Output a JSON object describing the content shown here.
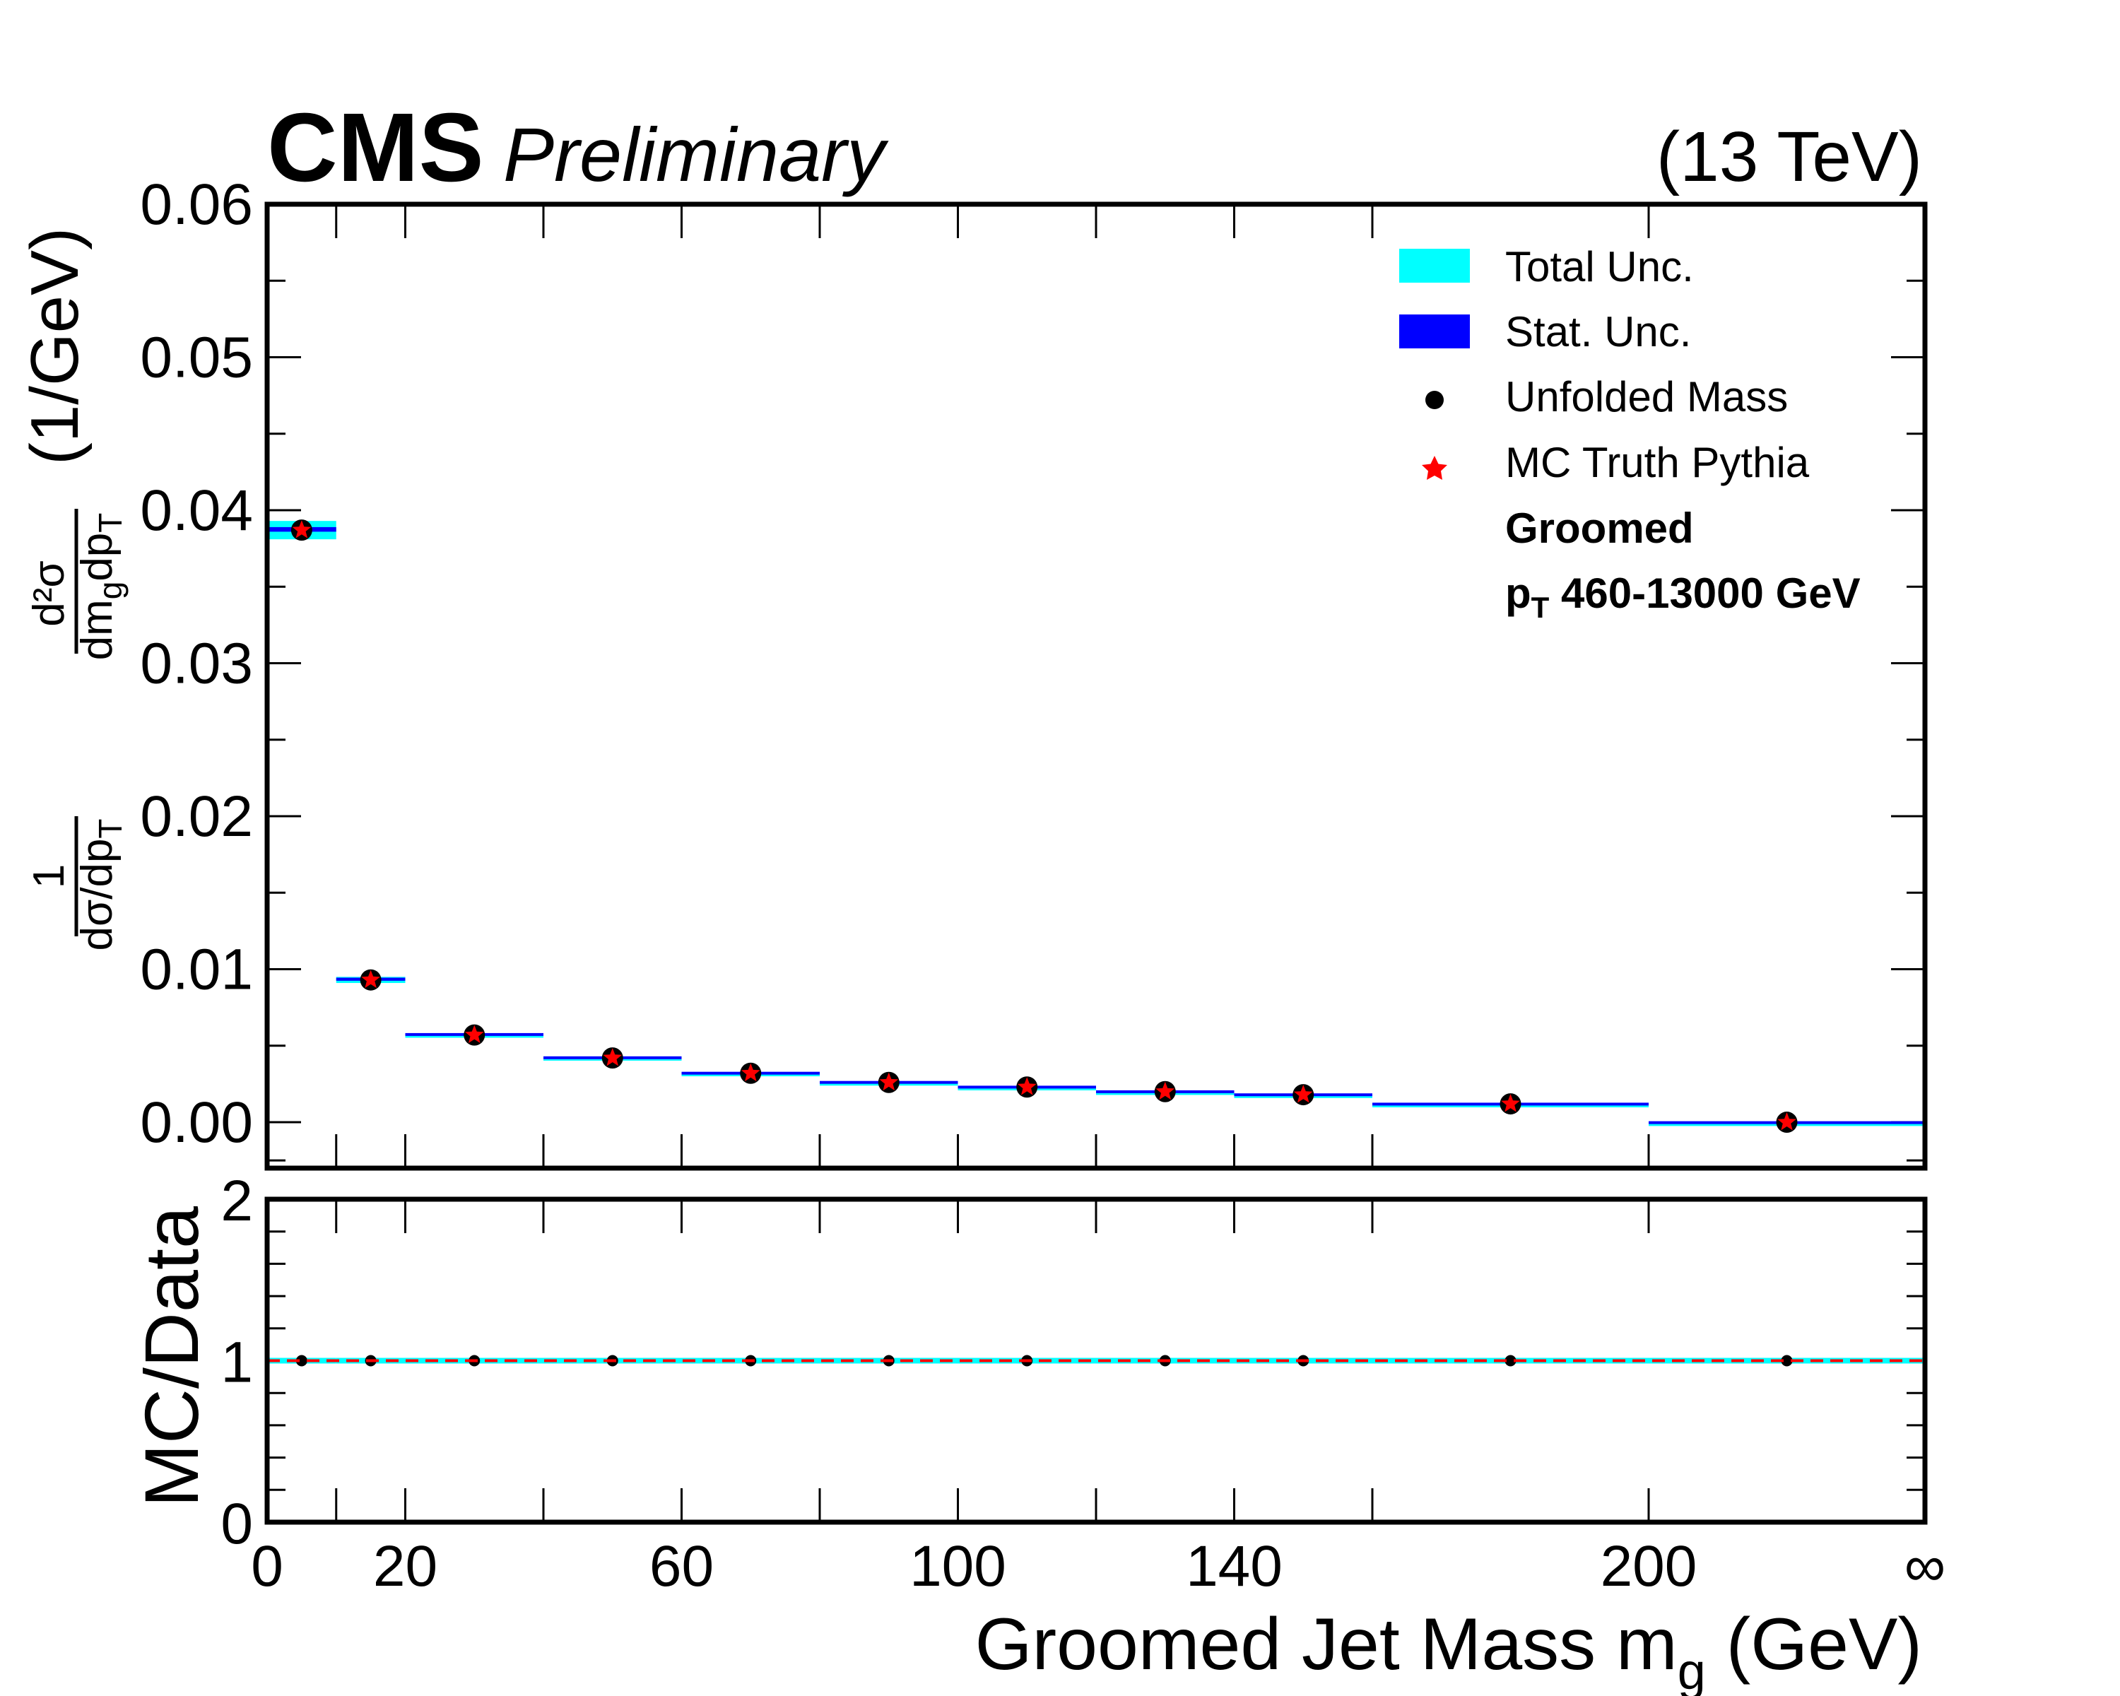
{
  "header": {
    "cms": "CMS",
    "preliminary": "Preliminary",
    "energy": "(13 TeV)"
  },
  "axes": {
    "xlabel": "Groomed Jet Mass m",
    "xlabel_sub": "g",
    "xlabel_unit": " (GeV)",
    "ylabel_ratio": "MC/Data",
    "ylabel_unit": "(1/GeV)",
    "ylabel_frac1_num": "1",
    "ylabel_frac1_den": "dσ/dp",
    "ylabel_frac1_den_sub": "T",
    "ylabel_frac2_num": "d²σ",
    "ylabel_frac2_den": "dm",
    "ylabel_frac2_den_sub1": "g",
    "ylabel_frac2_den_mid": "dp",
    "ylabel_frac2_den_sub2": "T"
  },
  "legend": {
    "total_unc": "Total Unc.",
    "stat_unc": "Stat. Unc.",
    "unfolded": "Unfolded Mass",
    "mc_truth": "MC Truth Pythia",
    "groomed": "Groomed",
    "pt_p": "p",
    "pt_sub": "T",
    "pt_range": " 460-13000 GeV"
  },
  "colors": {
    "total_unc": "#00ffff",
    "stat_unc": "#0000ff",
    "data_marker": "#000000",
    "mc_marker": "#ff0000",
    "ratio_line": "#ff0000"
  },
  "chart_data": [
    {
      "type": "scatter",
      "panel": "main",
      "x_tick_labels": [
        "0",
        "20",
        "60",
        "100",
        "140",
        "200",
        "∞"
      ],
      "y_tick_labels": [
        "0.00",
        "0.01",
        "0.02",
        "0.03",
        "0.04",
        "0.05",
        "0.06"
      ],
      "ylim": [
        -0.003,
        0.06
      ],
      "bins": [
        {
          "low": 0,
          "high": 10,
          "data": 0.0387,
          "mc": 0.0387,
          "total_unc": 0.0006,
          "stat_unc": 0.00015
        },
        {
          "low": 10,
          "high": 20,
          "data": 0.0093,
          "mc": 0.0093,
          "total_unc": 0.0002,
          "stat_unc": 0.0001
        },
        {
          "low": 20,
          "high": 40,
          "data": 0.0057,
          "mc": 0.0057,
          "total_unc": 0.0001,
          "stat_unc": 8e-05
        },
        {
          "low": 40,
          "high": 60,
          "data": 0.0042,
          "mc": 0.0042,
          "total_unc": 0.0001,
          "stat_unc": 6e-05
        },
        {
          "low": 60,
          "high": 80,
          "data": 0.0032,
          "mc": 0.0032,
          "total_unc": 8e-05,
          "stat_unc": 5e-05
        },
        {
          "low": 80,
          "high": 100,
          "data": 0.0026,
          "mc": 0.0026,
          "total_unc": 7e-05,
          "stat_unc": 5e-05
        },
        {
          "low": 100,
          "high": 120,
          "data": 0.0023,
          "mc": 0.0023,
          "total_unc": 6e-05,
          "stat_unc": 4e-05
        },
        {
          "low": 120,
          "high": 140,
          "data": 0.002,
          "mc": 0.002,
          "total_unc": 6e-05,
          "stat_unc": 4e-05
        },
        {
          "low": 140,
          "high": 160,
          "data": 0.0018,
          "mc": 0.0018,
          "total_unc": 6e-05,
          "stat_unc": 4e-05
        },
        {
          "low": 160,
          "high": 200,
          "data": 0.0012,
          "mc": 0.0012,
          "total_unc": 5e-05,
          "stat_unc": 3e-05
        },
        {
          "low": 200,
          "high": "∞",
          "data": 0.0,
          "mc": 0.0,
          "total_unc": 3e-05,
          "stat_unc": 2e-05
        }
      ]
    },
    {
      "type": "scatter",
      "panel": "ratio",
      "y_tick_labels": [
        "0",
        "1",
        "2"
      ],
      "ylim": [
        0,
        2
      ],
      "reference_line": 1,
      "ratio_values": [
        1,
        1,
        1,
        1,
        1,
        1,
        1,
        1,
        1,
        1,
        1
      ]
    }
  ]
}
